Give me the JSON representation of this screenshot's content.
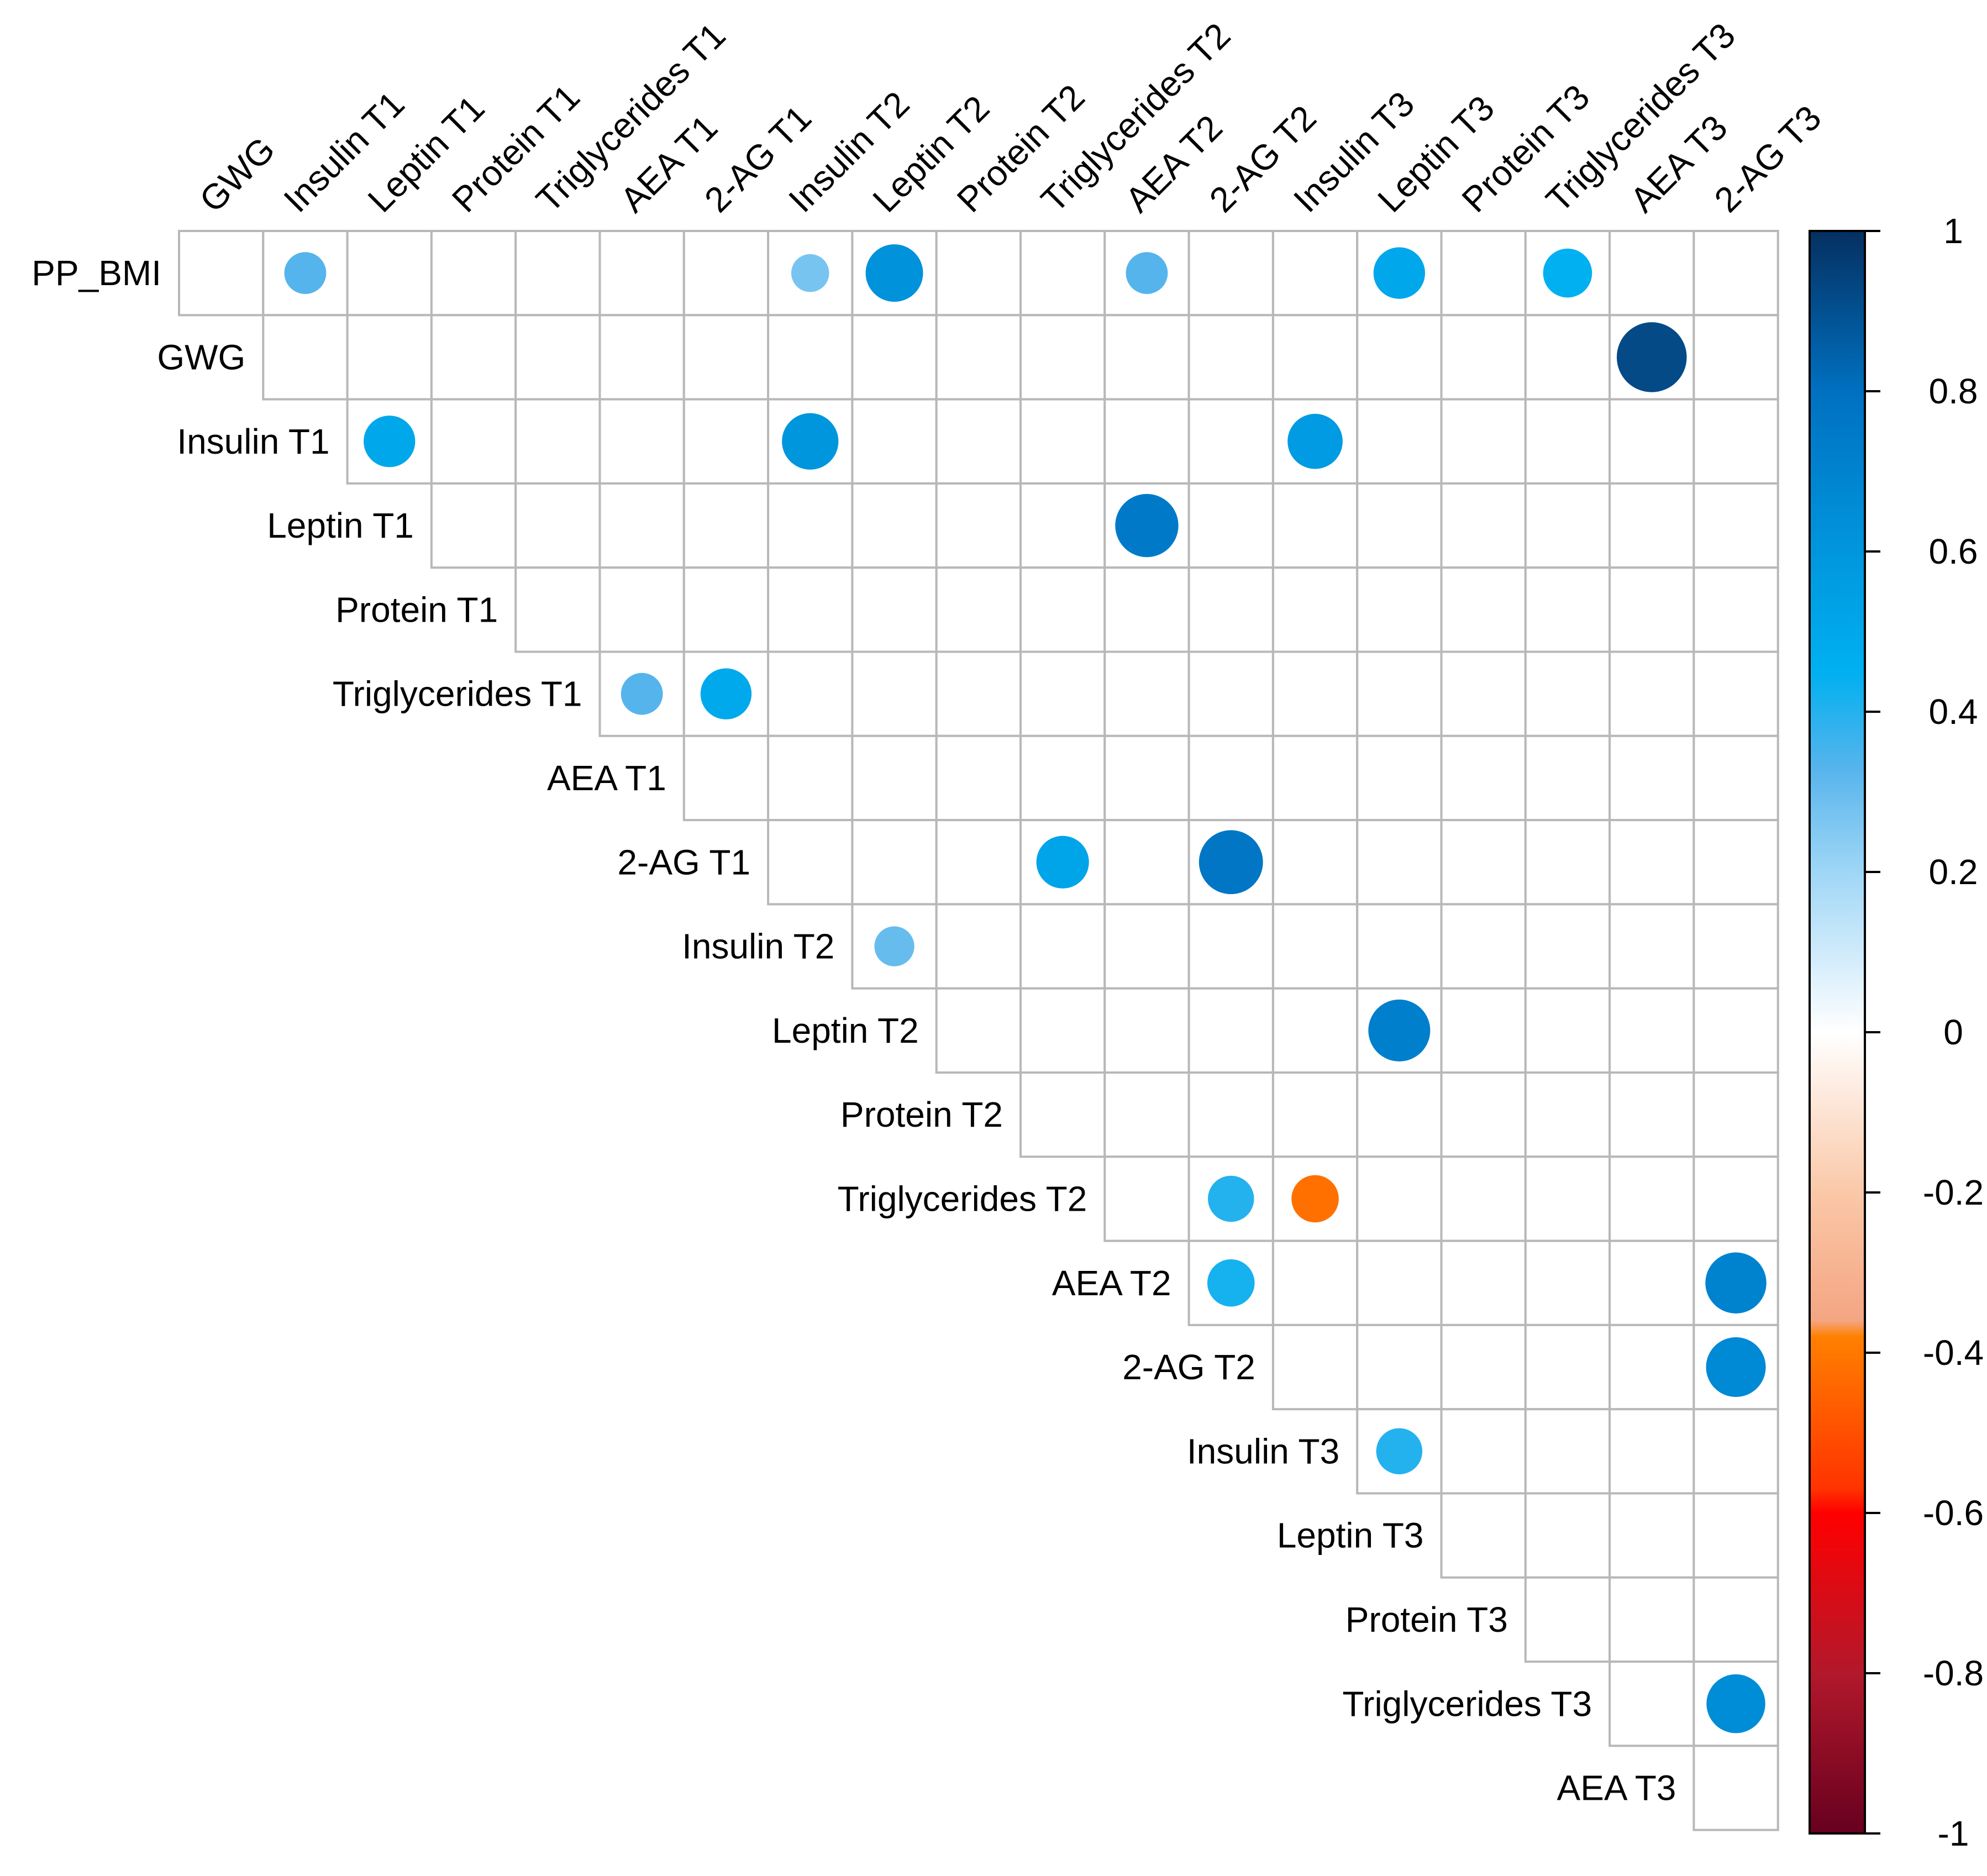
{
  "chart_data": {
    "type": "heatmap",
    "subtype": "correlation-upper-triangle-circles",
    "row_labels": [
      "PP_BMI",
      "GWG",
      "Insulin T1",
      "Leptin T1",
      "Protein T1",
      "Triglycerides T1",
      "AEA T1",
      "2-AG T1",
      "Insulin T2",
      "Leptin T2",
      "Protein T2",
      "Triglycerides T2",
      "AEA T2",
      "2-AG T2",
      "Insulin T3",
      "Leptin T3",
      "Protein T3",
      "Triglycerides T3",
      "AEA T3"
    ],
    "col_labels": [
      "GWG",
      "Insulin T1",
      "Leptin T1",
      "Protein T1",
      "Triglycerides T1",
      "AEA T1",
      "2-AG T1",
      "Insulin T2",
      "Leptin T2",
      "Protein T2",
      "Triglycerides T2",
      "AEA T2",
      "2-AG T2",
      "Insulin T3",
      "Leptin T3",
      "Protein T3",
      "Triglycerides T3",
      "AEA T3",
      "2-AG T3"
    ],
    "correlations": [
      {
        "row": "PP_BMI",
        "col": "Insulin T1",
        "r": 0.33
      },
      {
        "row": "PP_BMI",
        "col": "Insulin T2",
        "r": 0.27
      },
      {
        "row": "PP_BMI",
        "col": "Leptin T2",
        "r": 0.62
      },
      {
        "row": "PP_BMI",
        "col": "AEA T2",
        "r": 0.33
      },
      {
        "row": "PP_BMI",
        "col": "Leptin T3",
        "r": 0.5
      },
      {
        "row": "PP_BMI",
        "col": "Triglycerides T3",
        "r": 0.45
      },
      {
        "row": "GWG",
        "col": "AEA T3",
        "r": 0.92
      },
      {
        "row": "Insulin T1",
        "col": "Leptin T1",
        "r": 0.5
      },
      {
        "row": "Insulin T1",
        "col": "Insulin T2",
        "r": 0.6
      },
      {
        "row": "Insulin T1",
        "col": "Insulin T3",
        "r": 0.57
      },
      {
        "row": "Leptin T1",
        "col": "AEA T2",
        "r": 0.75
      },
      {
        "row": "Triglycerides T1",
        "col": "AEA T1",
        "r": 0.33
      },
      {
        "row": "Triglycerides T1",
        "col": "2-AG T1",
        "r": 0.49
      },
      {
        "row": "2-AG T1",
        "col": "Triglycerides T2",
        "r": 0.52
      },
      {
        "row": "2-AG T1",
        "col": "2-AG T2",
        "r": 0.77
      },
      {
        "row": "Insulin T2",
        "col": "Leptin T2",
        "r": 0.3
      },
      {
        "row": "Leptin T2",
        "col": "Leptin T3",
        "r": 0.72
      },
      {
        "row": "Triglycerides T2",
        "col": "2-AG T2",
        "r": 0.4
      },
      {
        "row": "Triglycerides T2",
        "col": "Insulin T3",
        "r": -0.42
      },
      {
        "row": "AEA T2",
        "col": "2-AG T2",
        "r": 0.42
      },
      {
        "row": "AEA T2",
        "col": "2-AG T3",
        "r": 0.7
      },
      {
        "row": "2-AG T2",
        "col": "2-AG T3",
        "r": 0.67
      },
      {
        "row": "Insulin T3",
        "col": "Leptin T3",
        "r": 0.4
      },
      {
        "row": "Triglycerides T3",
        "col": "2-AG T3",
        "r": 0.65
      }
    ],
    "colorbar": {
      "range": [
        -1,
        1
      ],
      "tick_labels": [
        "1",
        "0.8",
        "0.6",
        "0.4",
        "0.2",
        "0",
        "-0.2",
        "-0.4",
        "-0.6",
        "-0.8",
        "-1"
      ],
      "tick_values": [
        1,
        0.8,
        0.6,
        0.4,
        0.2,
        0,
        -0.2,
        -0.4,
        -0.6,
        -0.8,
        -1
      ],
      "stops": [
        {
          "v": -1.0,
          "color": "#67001f"
        },
        {
          "v": -0.8,
          "color": "#b2182b"
        },
        {
          "v": -0.6,
          "color": "#ff0000"
        },
        {
          "v": -0.57,
          "color": "#ff3300"
        },
        {
          "v": -0.38,
          "color": "#ff8000"
        },
        {
          "v": -0.36,
          "color": "#f4a582"
        },
        {
          "v": -0.2,
          "color": "#fac8a8"
        },
        {
          "v": 0.0,
          "color": "#ffffff"
        },
        {
          "v": 0.2,
          "color": "#9fd6f6"
        },
        {
          "v": 0.33,
          "color": "#56b4ec"
        },
        {
          "v": 0.45,
          "color": "#00b0f0"
        },
        {
          "v": 0.6,
          "color": "#0096de"
        },
        {
          "v": 0.8,
          "color": "#0070c0"
        },
        {
          "v": 1.0,
          "color": "#053061"
        }
      ]
    }
  }
}
